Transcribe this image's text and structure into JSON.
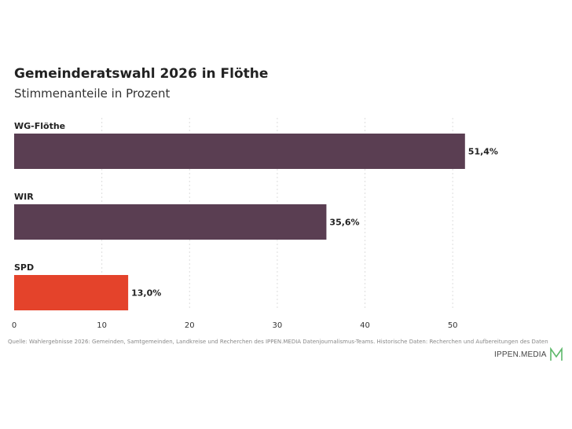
{
  "title": "Gemeinderatswahl 2026 in Flöthe",
  "subtitle": "Stimmenanteile in Prozent",
  "source": "Quelle: Wahlergebnisse 2026: Gemeinden, Samtgemeinden, Landkreise und Recherchen des IPPEN.MEDIA Datenjournalismus-Teams. Historische Daten: Recherchen und Aufbereitungen des Daten",
  "logo_text": "IPPEN.MEDIA",
  "colors": {
    "bar_default": "#5a3e52",
    "bar_spd": "#e4432b",
    "logo_accent": "#5db86a",
    "grid": "#dddddd"
  },
  "chart_data": {
    "type": "bar",
    "orientation": "horizontal",
    "categories": [
      "WG-Flöthe",
      "WIR",
      "SPD"
    ],
    "values": [
      51.4,
      35.6,
      13.0
    ],
    "value_labels": [
      "51,4%",
      "35,6%",
      "13,0%"
    ],
    "bar_colors": [
      "#5a3e52",
      "#5a3e52",
      "#e4432b"
    ],
    "xlim": [
      0,
      55
    ],
    "xticks": [
      0,
      10,
      20,
      30,
      40,
      50
    ],
    "grid": "vertical dotted",
    "title": "Gemeinderatswahl 2026 in Flöthe",
    "subtitle": "Stimmenanteile in Prozent",
    "xlabel": "",
    "ylabel": ""
  }
}
